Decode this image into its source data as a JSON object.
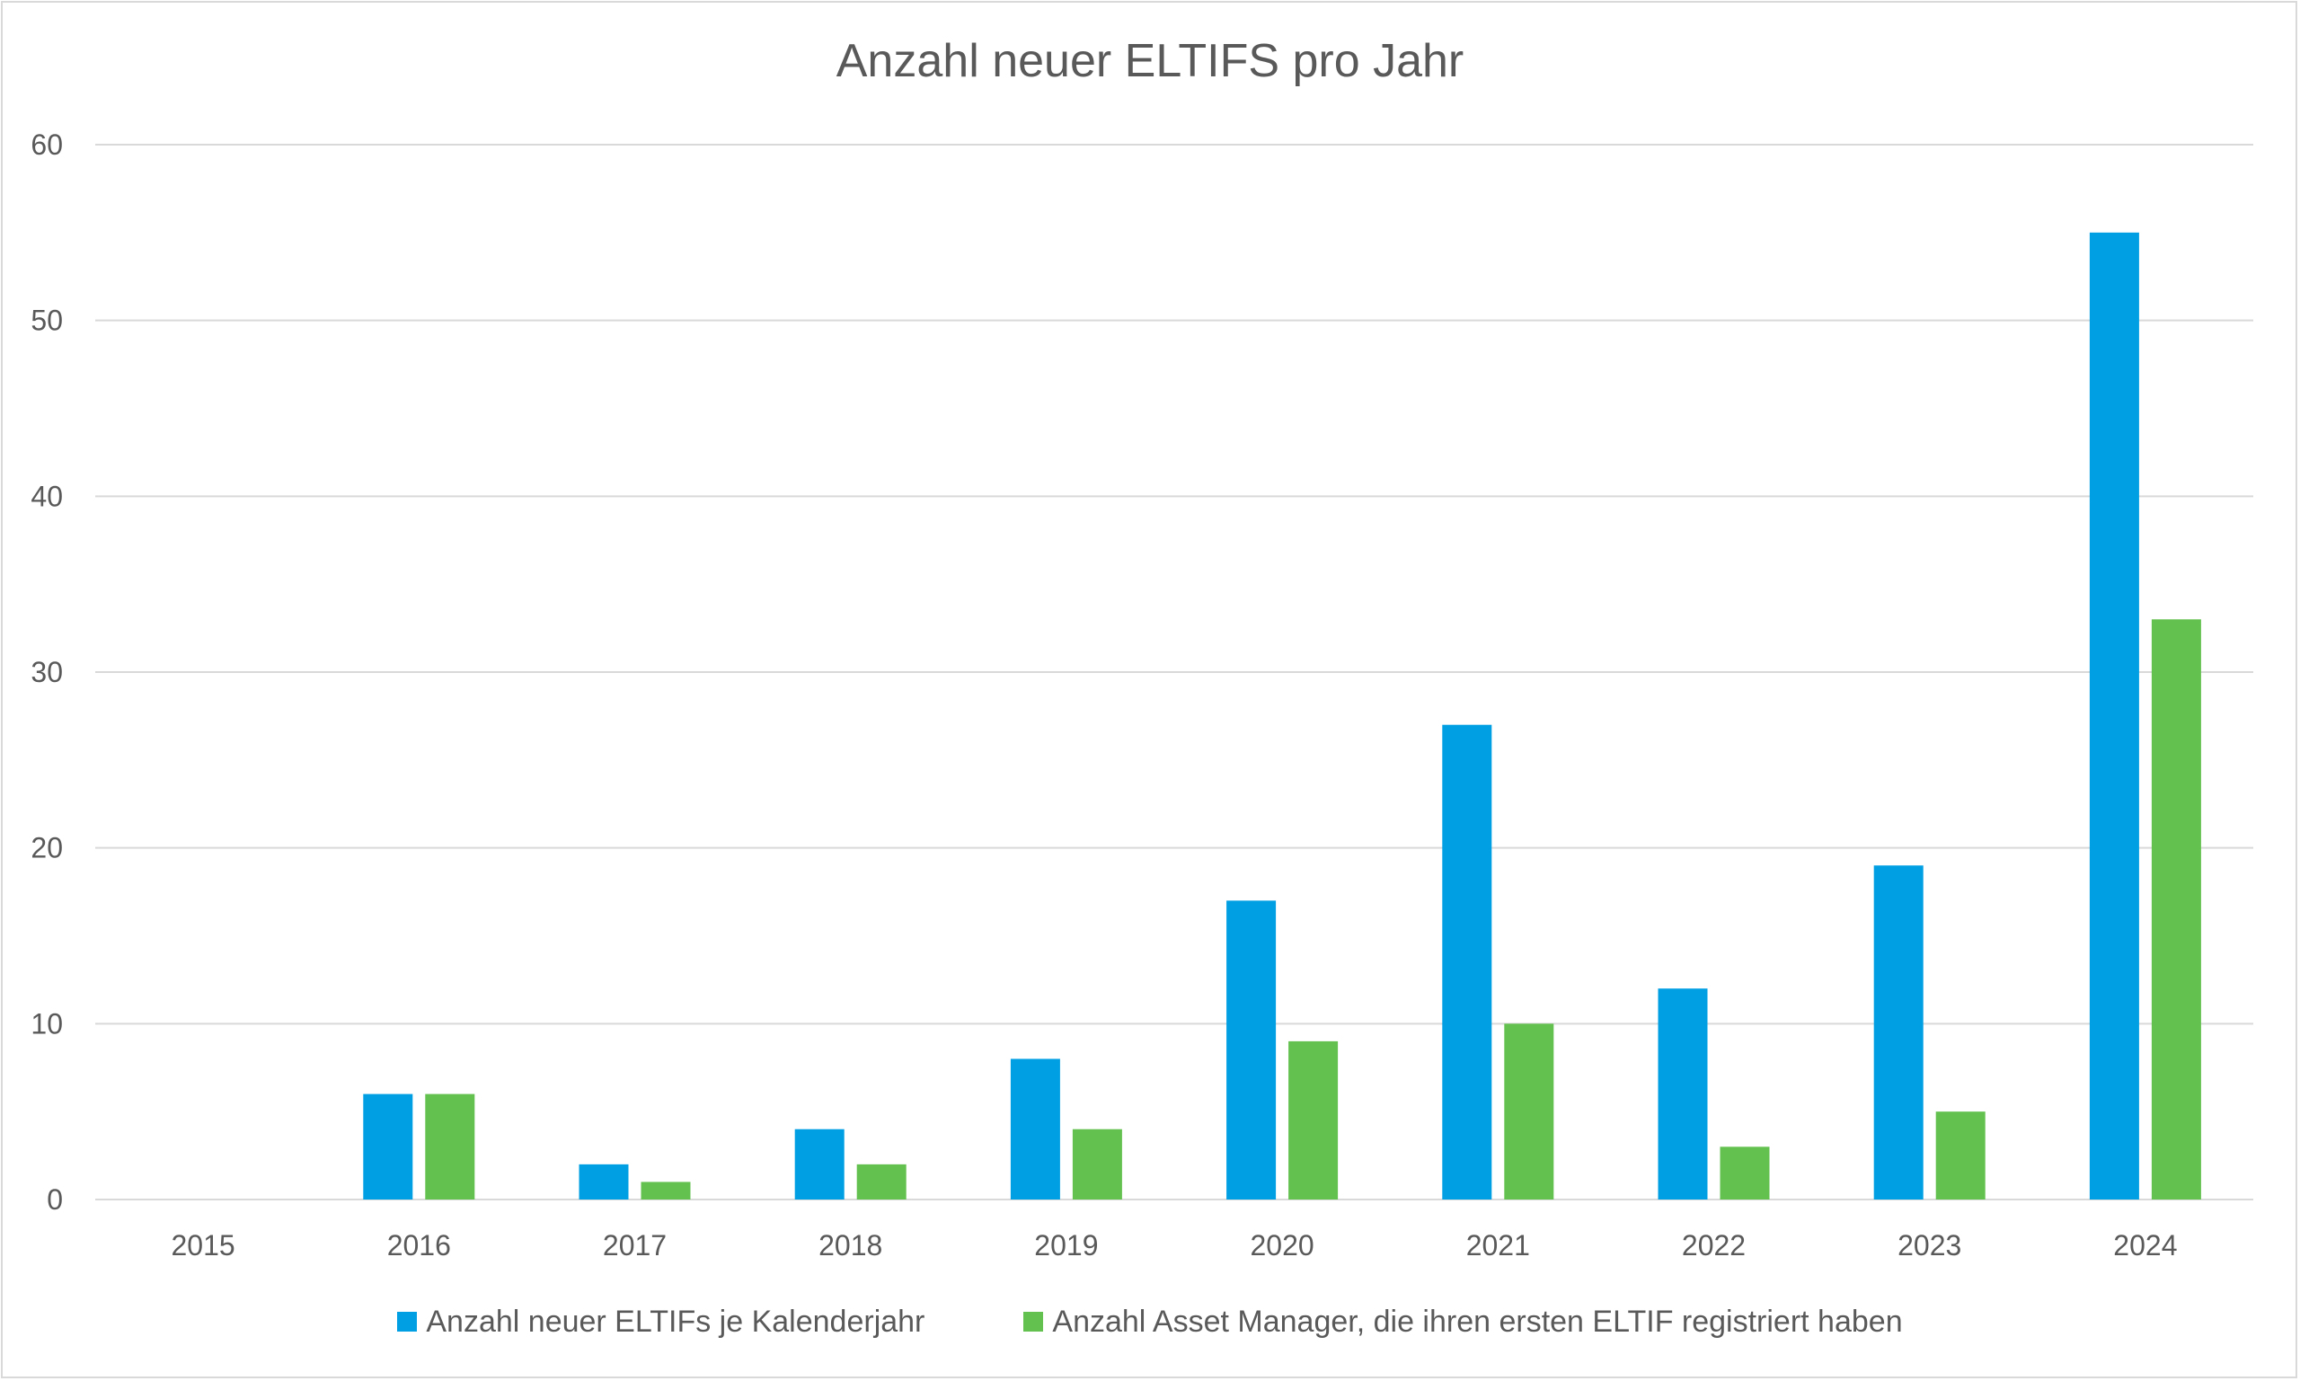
{
  "chart_data": {
    "type": "bar",
    "title": "Anzahl neuer ELTIFS pro Jahr",
    "categories": [
      "2015",
      "2016",
      "2017",
      "2018",
      "2019",
      "2020",
      "2021",
      "2022",
      "2023",
      "2024"
    ],
    "series": [
      {
        "name": "Anzahl neuer ELTIFs je Kalenderjahr",
        "color": "#009FE3",
        "values": [
          0,
          6,
          2,
          4,
          8,
          17,
          27,
          12,
          19,
          55
        ]
      },
      {
        "name": "Anzahl Asset Manager, die ihren ersten ELTIF registriert haben",
        "color": "#63C150",
        "values": [
          0,
          6,
          1,
          2,
          4,
          9,
          10,
          3,
          5,
          33
        ]
      }
    ],
    "ylim": [
      0,
      60
    ],
    "yticks": [
      0,
      10,
      20,
      30,
      40,
      50,
      60
    ],
    "grid": true,
    "legend_position": "bottom"
  }
}
